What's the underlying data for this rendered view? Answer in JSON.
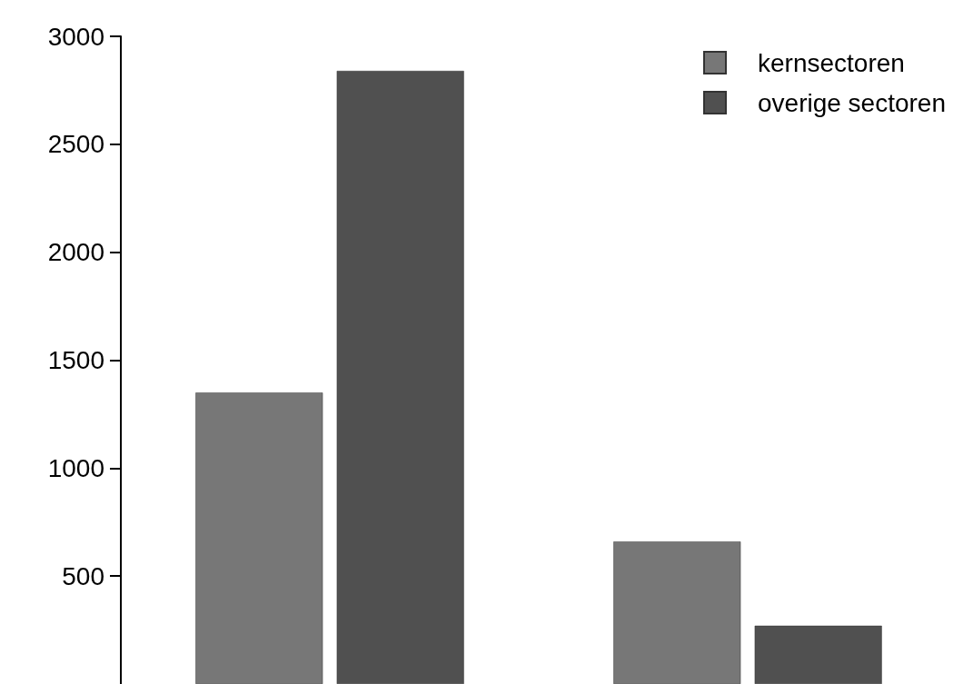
{
  "chart_data": {
    "type": "bar",
    "categories": [
      null,
      null
    ],
    "series": [
      {
        "name": "kernsectoren",
        "color": "#777777",
        "values": [
          1350,
          660
        ]
      },
      {
        "name": "overige sectoren",
        "color": "#505050",
        "values": [
          2840,
          270
        ]
      }
    ],
    "ylim": [
      0,
      3000
    ],
    "yticks": [
      500,
      1000,
      1500,
      2000,
      2500,
      3000
    ],
    "grid": false,
    "legend": "top right",
    "tick_labels": "y"
  }
}
